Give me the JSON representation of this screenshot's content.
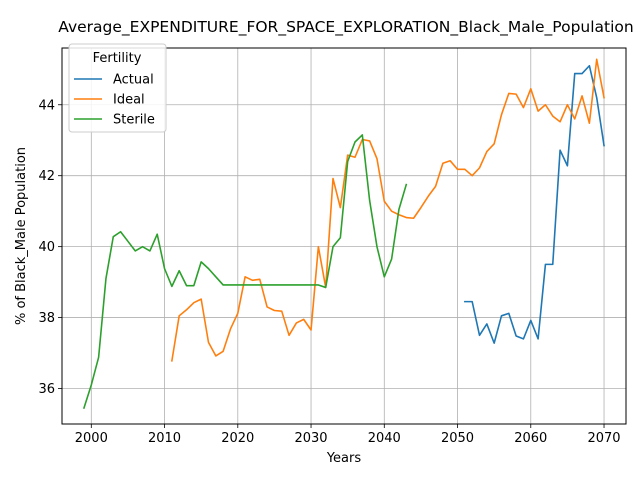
{
  "chart_data": {
    "type": "line",
    "title": "Average_EXPENDITURE_FOR_SPACE_EXPLORATION_Black_Male_Population",
    "xlabel": "Years",
    "ylabel": "% of Black_Male Population",
    "xlim": [
      1996,
      2073
    ],
    "ylim": [
      35.0,
      45.6
    ],
    "xticks": [
      2000,
      2010,
      2020,
      2030,
      2040,
      2050,
      2060,
      2070
    ],
    "yticks": [
      36,
      38,
      40,
      42,
      44
    ],
    "grid": true,
    "legend": {
      "title": "Fertility",
      "placement": "top-left"
    },
    "series": [
      {
        "name": "Actual",
        "color": "#1f77b4",
        "x": [
          2051,
          2052,
          2053,
          2054,
          2055,
          2056,
          2057,
          2058,
          2059,
          2060,
          2061,
          2062,
          2063,
          2064,
          2065,
          2066,
          2067,
          2068,
          2069,
          2070
        ],
        "y": [
          38.45,
          38.45,
          37.5,
          37.82,
          37.28,
          38.05,
          38.12,
          37.48,
          37.4,
          37.92,
          37.4,
          39.5,
          39.5,
          42.72,
          42.28,
          44.88,
          44.88,
          45.1,
          44.2,
          42.85
        ]
      },
      {
        "name": "Ideal",
        "color": "#ff7f0e",
        "x": [
          2011,
          2012,
          2013,
          2014,
          2015,
          2016,
          2017,
          2018,
          2019,
          2020,
          2021,
          2022,
          2023,
          2024,
          2025,
          2026,
          2027,
          2028,
          2029,
          2030,
          2031,
          2032,
          2033,
          2034,
          2035,
          2036,
          2037,
          2038,
          2039,
          2040,
          2041,
          2042,
          2043,
          2044,
          2045,
          2046,
          2047,
          2048,
          2049,
          2050,
          2051,
          2052,
          2053,
          2054,
          2055,
          2056,
          2057,
          2058,
          2059,
          2060,
          2061,
          2062,
          2063,
          2064,
          2065,
          2066,
          2067,
          2068,
          2069,
          2070
        ],
        "y": [
          36.78,
          38.05,
          38.22,
          38.42,
          38.52,
          37.3,
          36.92,
          37.05,
          37.68,
          38.12,
          39.15,
          39.05,
          39.08,
          38.3,
          38.2,
          38.18,
          37.5,
          37.85,
          37.95,
          37.65,
          40.0,
          38.85,
          41.92,
          41.1,
          42.58,
          42.52,
          43.02,
          42.98,
          42.48,
          41.28,
          41.0,
          40.9,
          40.82,
          40.8,
          41.1,
          41.42,
          41.7,
          42.35,
          42.42,
          42.18,
          42.18,
          42.0,
          42.22,
          42.68,
          42.9,
          43.72,
          44.32,
          44.3,
          43.92,
          44.45,
          43.82,
          44.0,
          43.68,
          43.52,
          44.0,
          43.6,
          44.25,
          43.48,
          45.28,
          44.2
        ]
      },
      {
        "name": "Sterile",
        "color": "#2ca02c",
        "x": [
          1999,
          2000,
          2001,
          2002,
          2003,
          2004,
          2005,
          2006,
          2007,
          2008,
          2009,
          2010,
          2011,
          2012,
          2013,
          2014,
          2015,
          2016,
          2017,
          2018,
          2019,
          2020,
          2021,
          2022,
          2023,
          2024,
          2025,
          2026,
          2027,
          2028,
          2029,
          2030,
          2031,
          2032,
          2033,
          2034,
          2035,
          2036,
          2037,
          2038,
          2039,
          2040,
          2041,
          2042,
          2043
        ],
        "y": [
          35.45,
          36.1,
          36.88,
          39.1,
          40.28,
          40.42,
          40.15,
          39.88,
          40.0,
          39.88,
          40.35,
          39.38,
          38.88,
          39.32,
          38.9,
          38.9,
          39.57,
          39.38,
          39.15,
          38.92,
          38.92,
          38.92,
          38.92,
          38.92,
          38.92,
          38.92,
          38.92,
          38.92,
          38.92,
          38.92,
          38.92,
          38.92,
          38.92,
          38.85,
          40.0,
          40.25,
          42.4,
          42.95,
          43.15,
          41.3,
          40.0,
          39.15,
          39.65,
          41.05,
          41.75
        ]
      }
    ]
  }
}
